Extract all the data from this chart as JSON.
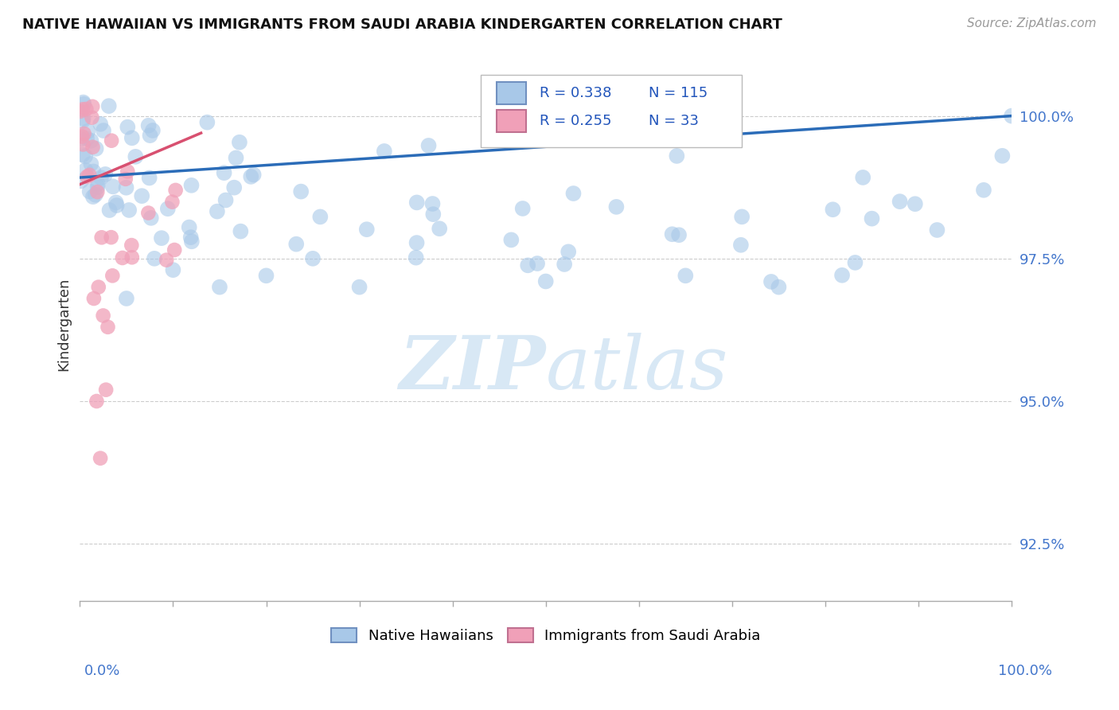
{
  "title": "NATIVE HAWAIIAN VS IMMIGRANTS FROM SAUDI ARABIA KINDERGARTEN CORRELATION CHART",
  "source": "Source: ZipAtlas.com",
  "ylabel": "Kindergarten",
  "y_ticks": [
    92.5,
    95.0,
    97.5,
    100.0
  ],
  "y_tick_labels": [
    "92.5%",
    "95.0%",
    "97.5%",
    "100.0%"
  ],
  "xlim": [
    0.0,
    100.0
  ],
  "ylim": [
    91.5,
    101.2
  ],
  "blue_R": 0.338,
  "blue_N": 115,
  "pink_R": 0.255,
  "pink_N": 33,
  "blue_color": "#A8C8E8",
  "pink_color": "#F0A0B8",
  "trendline_blue_color": "#2B6CB8",
  "trendline_pink_color": "#D85070",
  "watermark_color": "#D8E8F5",
  "grid_color": "#CCCCCC",
  "legend_label_blue": "Native Hawaiians",
  "legend_label_pink": "Immigrants from Saudi Arabia",
  "blue_trend_x0": 0.0,
  "blue_trend_y0": 98.92,
  "blue_trend_x1": 100.0,
  "blue_trend_y1": 100.0,
  "pink_trend_x0": 0.0,
  "pink_trend_y0": 98.8,
  "pink_trend_x1": 13.0,
  "pink_trend_y1": 99.7
}
